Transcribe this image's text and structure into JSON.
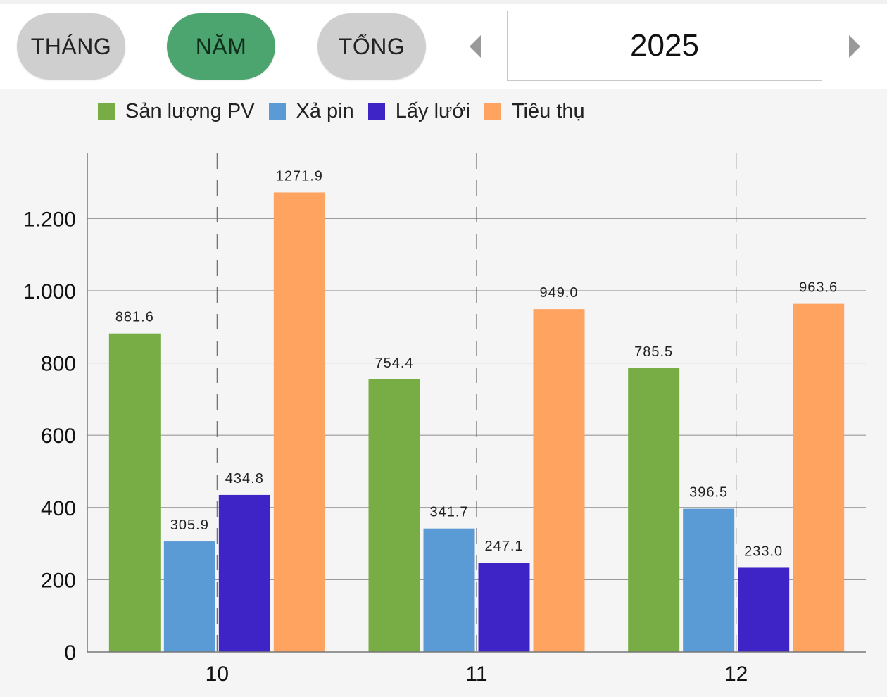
{
  "toolbar": {
    "tabs": [
      {
        "label": "THÁNG",
        "active": false
      },
      {
        "label": "NĂM",
        "active": true
      },
      {
        "label": "TỔNG",
        "active": false
      }
    ],
    "year": "2025",
    "prev_icon": "triangle-left-icon",
    "next_icon": "triangle-right-icon"
  },
  "colors": {
    "active_tab": "#4ca46e",
    "inactive_tab": "#cfcfcf"
  },
  "chart_data": {
    "type": "bar",
    "categories": [
      "10",
      "11",
      "12"
    ],
    "series": [
      {
        "name": "Sản lượng PV",
        "color": "#78ad45",
        "values": [
          881.6,
          754.4,
          785.5
        ]
      },
      {
        "name": "Xả pin",
        "color": "#5b9bd5",
        "values": [
          305.9,
          341.7,
          396.5
        ]
      },
      {
        "name": "Lấy lưới",
        "color": "#3e23c6",
        "values": [
          434.8,
          247.1,
          233.0
        ]
      },
      {
        "name": "Tiêu thụ",
        "color": "#ffa361",
        "values": [
          1271.9,
          949.0,
          963.6
        ]
      }
    ],
    "yticks": [
      0,
      200,
      400,
      600,
      800,
      1000,
      1200
    ],
    "ytick_labels": [
      "0",
      "200",
      "400",
      "600",
      "800",
      "1.000",
      "1.200"
    ],
    "ylim": [
      0,
      1380
    ],
    "value_labels": true,
    "legend": "top-left",
    "grid": "horizontal"
  }
}
